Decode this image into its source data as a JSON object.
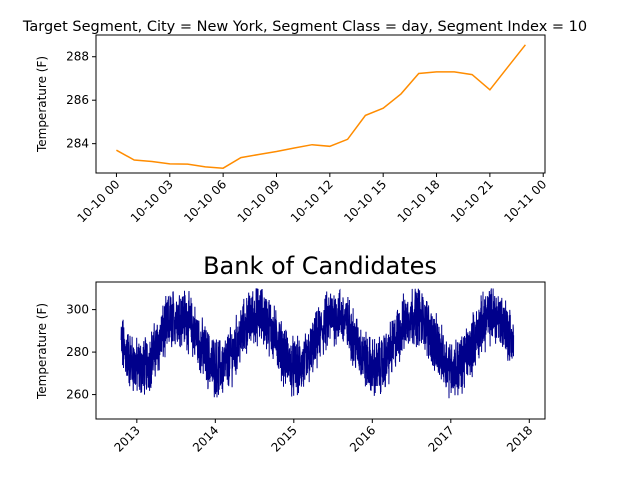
{
  "chart_data": [
    {
      "type": "line",
      "title": "Target Segment, City = New York, Segment Class = day, Segment Index = 10",
      "xlabel": "",
      "ylabel": "Temperature (F)",
      "color": "#ff8c00",
      "x_ticks": [
        "10-10 00",
        "10-10 03",
        "10-10 06",
        "10-10 09",
        "10-10 12",
        "10-10 15",
        "10-10 18",
        "10-10 21",
        "10-11 00"
      ],
      "y_ticks": [
        "284",
        "286",
        "288"
      ],
      "xlim_hours": [
        -1.15,
        24.1
      ],
      "ylim": [
        282.65,
        289.0
      ],
      "grid": false,
      "series": [
        {
          "x_hour": [
            0,
            1,
            2,
            3,
            4,
            5,
            6,
            7,
            8,
            9,
            10,
            11,
            12,
            13,
            14,
            15,
            16,
            17,
            18,
            19,
            20,
            21,
            22,
            23
          ],
          "values": [
            283.7,
            283.25,
            283.18,
            283.07,
            283.06,
            282.93,
            282.87,
            283.36,
            283.5,
            283.64,
            283.8,
            283.95,
            283.88,
            284.2,
            285.3,
            285.63,
            286.29,
            287.23,
            287.3,
            287.3,
            287.18,
            286.48,
            287.52,
            288.55
          ]
        }
      ]
    },
    {
      "type": "line",
      "title": "Bank of Candidates",
      "xlabel": "",
      "ylabel": "Temperature (F)",
      "color": "#00008b",
      "x_ticks": [
        "2013",
        "2014",
        "2015",
        "2016",
        "2017",
        "2018"
      ],
      "y_ticks": [
        "260",
        "280",
        "300"
      ],
      "xlim_years": [
        2012.48,
        2018.2
      ],
      "ylim": [
        248.5,
        313.0
      ],
      "date_range": [
        "2012-10",
        "2017-10"
      ],
      "mean_temp": 285,
      "seasonal_amplitude": 12.5,
      "grid": false
    }
  ]
}
